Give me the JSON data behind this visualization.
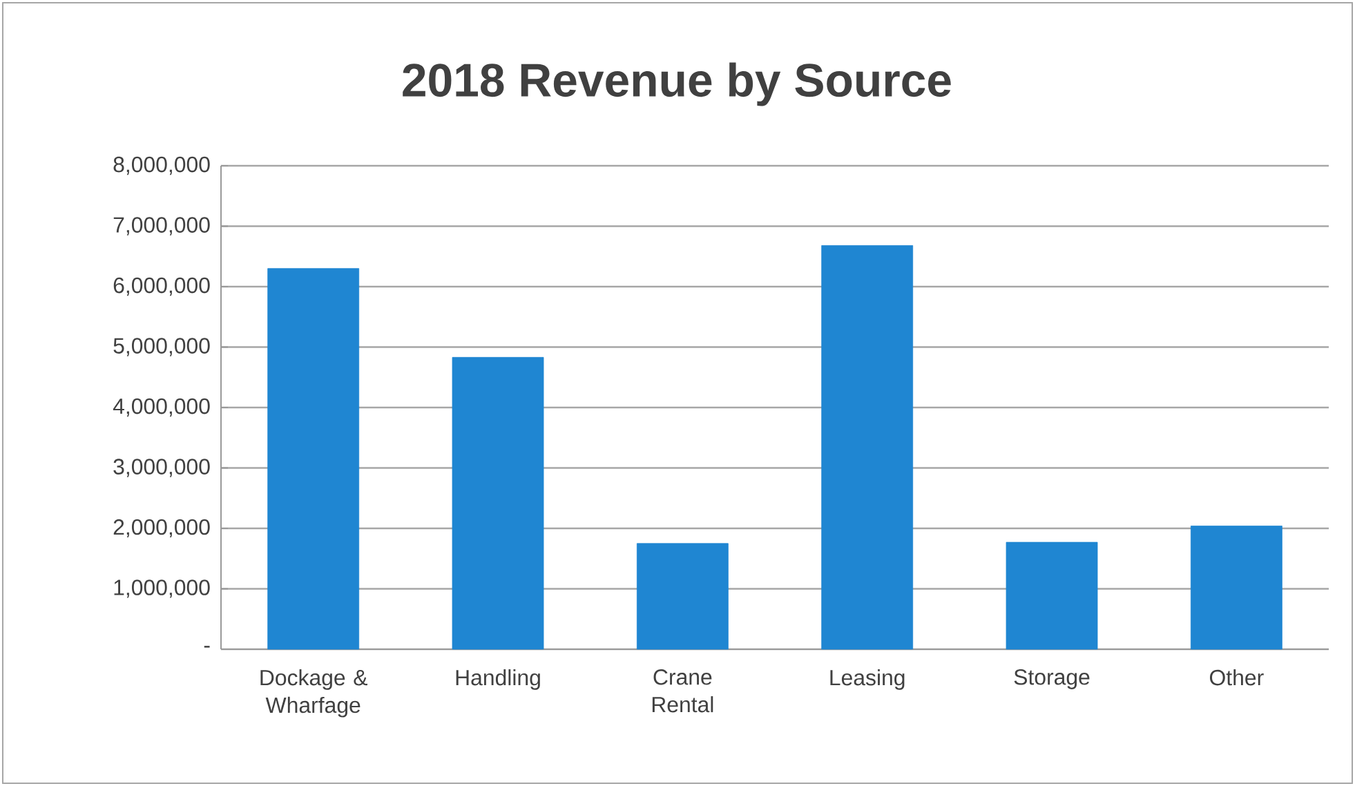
{
  "chart_data": {
    "type": "bar",
    "title": "2018 Revenue by Source",
    "categories": [
      "Dockage & Wharfage",
      "Handling",
      "Crane Rental",
      "Leasing",
      "Storage",
      "Other"
    ],
    "values": [
      6300000,
      4830000,
      1750000,
      6680000,
      1770000,
      2040000
    ],
    "color": "#1f86d2",
    "ylim": [
      0,
      8000000
    ],
    "yticks": [
      {
        "value": 0,
        "label": "-"
      },
      {
        "value": 1000000,
        "label": "1,000,000"
      },
      {
        "value": 2000000,
        "label": "2,000,000"
      },
      {
        "value": 3000000,
        "label": "3,000,000"
      },
      {
        "value": 4000000,
        "label": "4,000,000"
      },
      {
        "value": 5000000,
        "label": "5,000,000"
      },
      {
        "value": 6000000,
        "label": "6,000,000"
      },
      {
        "value": 7000000,
        "label": "7,000,000"
      },
      {
        "value": 8000000,
        "label": "8,000,000"
      }
    ],
    "grid": "y"
  }
}
